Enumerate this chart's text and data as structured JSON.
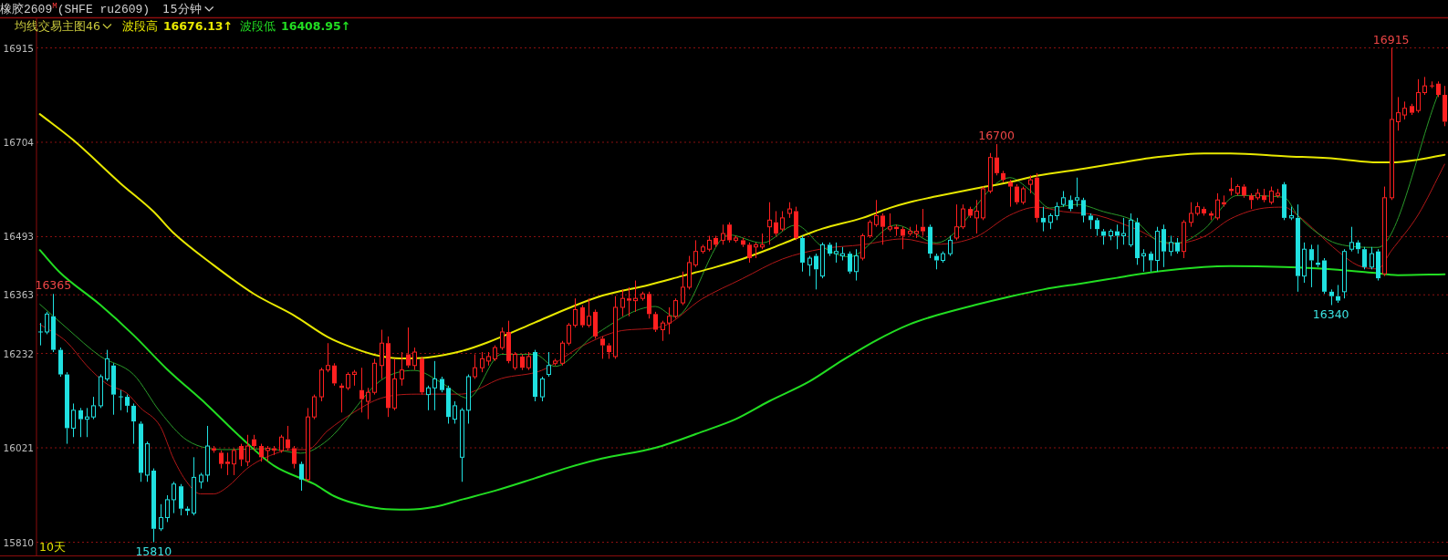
{
  "chart_data": {
    "type": "candlestick",
    "title": "橡胶2609$^{M}$(SHFE ru2609)",
    "subtitle": "15分钟",
    "legend_title": "均线交易主图46",
    "categories": [
      null,
      null,
      null,
      null,
      null,
      null,
      null,
      null,
      null,
      null,
      null,
      null,
      null,
      null,
      null,
      null,
      null,
      null,
      null,
      null,
      null,
      null,
      null,
      null,
      null,
      null,
      null,
      null,
      null,
      null,
      null,
      null,
      null,
      null,
      null,
      null,
      null,
      null,
      null,
      null,
      null,
      null,
      null,
      null,
      null,
      null,
      null,
      null,
      null,
      null,
      null,
      null,
      null,
      null,
      null,
      null,
      null,
      null,
      null,
      null,
      null,
      null,
      null,
      null,
      null,
      null,
      null,
      null,
      null,
      null,
      null,
      null,
      null,
      null,
      null,
      null,
      null,
      null,
      null,
      null,
      null,
      null,
      null,
      null,
      null,
      null,
      null,
      null,
      null,
      null,
      null,
      null,
      null,
      null,
      null,
      null,
      null,
      null,
      null,
      null,
      null,
      null,
      null,
      null,
      null,
      null,
      null,
      null,
      null,
      null,
      null,
      null,
      null,
      null,
      null,
      null,
      null,
      null,
      null,
      null,
      null,
      null,
      null,
      null,
      null,
      null,
      null,
      null,
      null,
      null,
      null,
      null,
      null,
      null,
      null,
      null,
      null,
      null,
      null,
      null,
      null,
      null,
      null,
      null,
      null,
      null,
      null,
      null,
      null,
      null,
      null,
      null,
      null,
      null,
      null,
      null,
      null,
      null,
      null,
      null,
      null,
      null,
      null,
      null,
      null,
      null,
      null,
      null,
      null,
      null,
      null,
      null,
      null,
      null,
      null,
      null,
      null,
      null,
      null,
      null,
      null,
      null,
      null,
      null,
      null,
      null,
      null,
      null,
      null,
      null,
      null,
      null,
      null,
      null,
      null,
      null,
      null,
      null,
      null,
      null,
      null,
      null,
      null,
      null,
      null,
      null,
      null,
      null,
      null,
      null,
      null
    ],
    "ohlc": [
      [
        16280,
        16300,
        16250,
        16280
      ],
      [
        16280,
        16325,
        16275,
        16320
      ],
      [
        16315,
        16365,
        16235,
        16240
      ],
      [
        16240,
        16245,
        16180,
        16185
      ],
      [
        16185,
        16190,
        16030,
        16065
      ],
      [
        16065,
        16120,
        16045,
        16105
      ],
      [
        16105,
        16110,
        16045,
        16085
      ],
      [
        16085,
        16110,
        16045,
        16090
      ],
      [
        16090,
        16135,
        16085,
        16115
      ],
      [
        16115,
        16185,
        16110,
        16180
      ],
      [
        16175,
        16240,
        16170,
        16220
      ],
      [
        16205,
        16210,
        16095,
        16140
      ],
      [
        16135,
        16150,
        16105,
        16135
      ],
      [
        16135,
        16140,
        16100,
        16115
      ],
      [
        16115,
        16120,
        16030,
        16080
      ],
      [
        16075,
        16080,
        15945,
        15965
      ],
      [
        15960,
        16035,
        15945,
        16030
      ],
      [
        15970,
        15975,
        15810,
        15840
      ],
      [
        15840,
        15895,
        15835,
        15865
      ],
      [
        15865,
        15915,
        15855,
        15905
      ],
      [
        15905,
        15945,
        15875,
        15940
      ],
      [
        15935,
        15940,
        15870,
        15885
      ],
      [
        15885,
        15890,
        15870,
        15880
      ],
      [
        15875,
        16000,
        15870,
        15955
      ],
      [
        15945,
        15965,
        15930,
        15960
      ],
      [
        15960,
        16070,
        15945,
        16025
      ],
      [
        16020,
        16025,
        16010,
        16015
      ],
      [
        16010,
        16015,
        15975,
        15985
      ],
      [
        15990,
        16010,
        15960,
        15985
      ],
      [
        15985,
        16020,
        15960,
        16015
      ],
      [
        16025,
        16030,
        15980,
        15995
      ],
      [
        15990,
        16050,
        15980,
        16025
      ],
      [
        16040,
        16050,
        16015,
        16025
      ],
      [
        16025,
        16030,
        15990,
        16000
      ],
      [
        16015,
        16025,
        15990,
        16020
      ],
      [
        16020,
        16025,
        16005,
        16015
      ],
      [
        16015,
        16050,
        16010,
        16045
      ],
      [
        16040,
        16070,
        16015,
        16020
      ],
      [
        16020,
        16025,
        15975,
        15985
      ],
      [
        15985,
        15990,
        15925,
        15950
      ],
      [
        15950,
        16110,
        15945,
        16090
      ],
      [
        16090,
        16140,
        16085,
        16135
      ],
      [
        16135,
        16200,
        16125,
        16195
      ],
      [
        16195,
        16255,
        16190,
        16205
      ],
      [
        16205,
        16210,
        16160,
        16165
      ],
      [
        16160,
        16165,
        16100,
        16155
      ],
      [
        16155,
        16190,
        16150,
        16185
      ],
      [
        16185,
        16195,
        16160,
        16190
      ],
      [
        16150,
        16200,
        16100,
        16130
      ],
      [
        16125,
        16155,
        16085,
        16145
      ],
      [
        16145,
        16220,
        16140,
        16210
      ],
      [
        16205,
        16285,
        16175,
        16255
      ],
      [
        16255,
        16270,
        16090,
        16110
      ],
      [
        16110,
        16220,
        16105,
        16175
      ],
      [
        16175,
        16235,
        16160,
        16195
      ],
      [
        16230,
        16290,
        16200,
        16205
      ],
      [
        16205,
        16245,
        16195,
        16235
      ],
      [
        16220,
        16225,
        16140,
        16145
      ],
      [
        16140,
        16160,
        16105,
        16155
      ],
      [
        16155,
        16215,
        16105,
        16175
      ],
      [
        16175,
        16180,
        16145,
        16150
      ],
      [
        16155,
        16160,
        16075,
        16090
      ],
      [
        16085,
        16125,
        16075,
        16115
      ],
      [
        16000,
        16110,
        15945,
        16105
      ],
      [
        16105,
        16185,
        16075,
        16180
      ],
      [
        16180,
        16230,
        16175,
        16200
      ],
      [
        16200,
        16235,
        16190,
        16220
      ],
      [
        16215,
        16235,
        16205,
        16225
      ],
      [
        16220,
        16250,
        16215,
        16245
      ],
      [
        16245,
        16290,
        16240,
        16280
      ],
      [
        16280,
        16305,
        16210,
        16215
      ],
      [
        16200,
        16235,
        16195,
        16230
      ],
      [
        16225,
        16230,
        16195,
        16200
      ],
      [
        16200,
        16235,
        16195,
        16225
      ],
      [
        16235,
        16240,
        16125,
        16135
      ],
      [
        16135,
        16180,
        16125,
        16175
      ],
      [
        16185,
        16235,
        16180,
        16205
      ],
      [
        16210,
        16220,
        16205,
        16215
      ],
      [
        16210,
        16260,
        16205,
        16255
      ],
      [
        16255,
        16300,
        16250,
        16295
      ],
      [
        16295,
        16355,
        16290,
        16330
      ],
      [
        16335,
        16340,
        16290,
        16295
      ],
      [
        16295,
        16355,
        16290,
        16315
      ],
      [
        16325,
        16330,
        16265,
        16270
      ],
      [
        16265,
        16270,
        16220,
        16250
      ],
      [
        16250,
        16255,
        16220,
        16235
      ],
      [
        16225,
        16360,
        16220,
        16335
      ],
      [
        16335,
        16375,
        16315,
        16355
      ],
      [
        16355,
        16380,
        16315,
        16350
      ],
      [
        16350,
        16395,
        16325,
        16355
      ],
      [
        16355,
        16370,
        16350,
        16365
      ],
      [
        16365,
        16370,
        16310,
        16320
      ],
      [
        16320,
        16325,
        16280,
        16285
      ],
      [
        16285,
        16305,
        16260,
        16300
      ],
      [
        16300,
        16335,
        16275,
        16315
      ],
      [
        16315,
        16355,
        16310,
        16350
      ],
      [
        16345,
        16415,
        16340,
        16380
      ],
      [
        16380,
        16450,
        16375,
        16435
      ],
      [
        16430,
        16485,
        16425,
        16460
      ],
      [
        16460,
        16475,
        16455,
        16470
      ],
      [
        16465,
        16495,
        16460,
        16485
      ],
      [
        16490,
        16495,
        16470,
        16475
      ],
      [
        16485,
        16520,
        16475,
        16500
      ],
      [
        16520,
        16525,
        16480,
        16485
      ],
      [
        16485,
        16495,
        16480,
        16490
      ],
      [
        16485,
        16490,
        16470,
        16475
      ],
      [
        16475,
        16480,
        16435,
        16445
      ],
      [
        16470,
        16480,
        16445,
        16475
      ],
      [
        16470,
        16500,
        16465,
        16475
      ],
      [
        16515,
        16570,
        16475,
        16530
      ],
      [
        16525,
        16550,
        16495,
        16500
      ],
      [
        16510,
        16550,
        16505,
        16535
      ],
      [
        16545,
        16570,
        16535,
        16555
      ],
      [
        16550,
        16560,
        16485,
        16490
      ],
      [
        16490,
        16495,
        16415,
        16435
      ],
      [
        16430,
        16450,
        16405,
        16445
      ],
      [
        16450,
        16455,
        16375,
        16420
      ],
      [
        16405,
        16480,
        16400,
        16475
      ],
      [
        16475,
        16480,
        16450,
        16455
      ],
      [
        16455,
        16480,
        16435,
        16460
      ],
      [
        16450,
        16470,
        16440,
        16455
      ],
      [
        16455,
        16460,
        16410,
        16415
      ],
      [
        16415,
        16465,
        16395,
        16450
      ],
      [
        16445,
        16500,
        16440,
        16495
      ],
      [
        16495,
        16530,
        16490,
        16525
      ],
      [
        16520,
        16575,
        16515,
        16540
      ],
      [
        16540,
        16545,
        16475,
        16515
      ],
      [
        16510,
        16545,
        16505,
        16515
      ],
      [
        16515,
        16520,
        16495,
        16510
      ],
      [
        16510,
        16515,
        16465,
        16495
      ],
      [
        16500,
        16515,
        16495,
        16505
      ],
      [
        16500,
        16520,
        16490,
        16505
      ],
      [
        16515,
        16555,
        16495,
        16505
      ],
      [
        16515,
        16520,
        16445,
        16455
      ],
      [
        16450,
        16455,
        16420,
        16440
      ],
      [
        16440,
        16460,
        16435,
        16455
      ],
      [
        16455,
        16495,
        16450,
        16485
      ],
      [
        16490,
        16565,
        16485,
        16515
      ],
      [
        16515,
        16565,
        16510,
        16555
      ],
      [
        16555,
        16560,
        16535,
        16540
      ],
      [
        16535,
        16575,
        16500,
        16550
      ],
      [
        16535,
        16605,
        16530,
        16600
      ],
      [
        16595,
        16680,
        16590,
        16670
      ],
      [
        16670,
        16700,
        16630,
        16635
      ],
      [
        16635,
        16640,
        16615,
        16620
      ],
      [
        16615,
        16620,
        16560,
        16605
      ],
      [
        16605,
        16610,
        16565,
        16570
      ],
      [
        16570,
        16605,
        16565,
        16600
      ],
      [
        16610,
        16630,
        16590,
        16620
      ],
      [
        16625,
        16635,
        16525,
        16535
      ],
      [
        16535,
        16560,
        16505,
        16525
      ],
      [
        16525,
        16545,
        16510,
        16540
      ],
      [
        16540,
        16570,
        16530,
        16560
      ],
      [
        16565,
        16595,
        16560,
        16580
      ],
      [
        16575,
        16585,
        16550,
        16555
      ],
      [
        16575,
        16625,
        16560,
        16580
      ],
      [
        16575,
        16580,
        16525,
        16540
      ],
      [
        16540,
        16545,
        16510,
        16530
      ],
      [
        16530,
        16535,
        16495,
        16510
      ],
      [
        16505,
        16510,
        16475,
        16495
      ],
      [
        16495,
        16510,
        16485,
        16505
      ],
      [
        16505,
        16520,
        16465,
        16495
      ],
      [
        16495,
        16535,
        16475,
        16500
      ],
      [
        16475,
        16545,
        16470,
        16530
      ],
      [
        16525,
        16535,
        16430,
        16445
      ],
      [
        16450,
        16465,
        16415,
        16455
      ],
      [
        16455,
        16460,
        16415,
        16440
      ],
      [
        16440,
        16515,
        16415,
        16505
      ],
      [
        16510,
        16520,
        16425,
        16460
      ],
      [
        16460,
        16495,
        16450,
        16480
      ],
      [
        16480,
        16490,
        16455,
        16460
      ],
      [
        16460,
        16530,
        16445,
        16525
      ],
      [
        16525,
        16570,
        16515,
        16545
      ],
      [
        16545,
        16570,
        16540,
        16560
      ],
      [
        16555,
        16560,
        16540,
        16545
      ],
      [
        16545,
        16550,
        16530,
        16540
      ],
      [
        16535,
        16590,
        16530,
        16575
      ],
      [
        16570,
        16585,
        16560,
        16565
      ],
      [
        16600,
        16625,
        16585,
        16595
      ],
      [
        16590,
        16610,
        16585,
        16605
      ],
      [
        16605,
        16610,
        16580,
        16585
      ],
      [
        16585,
        16590,
        16555,
        16575
      ],
      [
        16580,
        16600,
        16575,
        16590
      ],
      [
        16585,
        16600,
        16570,
        16575
      ],
      [
        16570,
        16605,
        16565,
        16595
      ],
      [
        16585,
        16600,
        16580,
        16590
      ],
      [
        16610,
        16615,
        16530,
        16535
      ],
      [
        16535,
        16560,
        16530,
        16540
      ],
      [
        16535,
        16565,
        16370,
        16405
      ],
      [
        16405,
        16480,
        16390,
        16465
      ],
      [
        16465,
        16475,
        16380,
        16440
      ],
      [
        16435,
        16475,
        16425,
        16430
      ],
      [
        16440,
        16445,
        16365,
        16370
      ],
      [
        16370,
        16375,
        16340,
        16360
      ],
      [
        16360,
        16385,
        16345,
        16350
      ],
      [
        16370,
        16465,
        16355,
        16460
      ],
      [
        16465,
        16515,
        16460,
        16480
      ],
      [
        16480,
        16485,
        16455,
        16465
      ],
      [
        16465,
        16470,
        16420,
        16425
      ],
      [
        16425,
        16470,
        16420,
        16455
      ],
      [
        16460,
        16465,
        16395,
        16400
      ],
      [
        16410,
        16605,
        16405,
        16580
      ],
      [
        16580,
        16915,
        16575,
        16755
      ],
      [
        16750,
        16805,
        16730,
        16770
      ],
      [
        16765,
        16795,
        16755,
        16780
      ],
      [
        16785,
        16790,
        16765,
        16770
      ],
      [
        16775,
        16845,
        16770,
        16815
      ],
      [
        16815,
        16850,
        16810,
        16830
      ],
      [
        16830,
        16840,
        16825,
        16830
      ],
      [
        16835,
        16840,
        16805,
        16810
      ],
      [
        16810,
        16830,
        16740,
        16750
      ]
    ],
    "colors": [
      "#20e0e0",
      "#20e0e0",
      "#20e0e0",
      "#20e0e0",
      "#20e0e0",
      "#20e0e0",
      "#20e0e0",
      "#20e0e0",
      "#20e0e0",
      "#20e0e0",
      "#20e0e0",
      "#20e0e0",
      "#20e0e0",
      "#20e0e0",
      "#20e0e0",
      "#20e0e0",
      "#20e0e0",
      "#20e0e0",
      "#20e0e0",
      "#20e0e0",
      "#20e0e0",
      "#20e0e0",
      "#20e0e0",
      "#20e0e0",
      "#20e0e0",
      "#20e0e0",
      "#ff2020",
      "#ff2020",
      "#ff2020",
      "#ff2020",
      "#ff2020",
      "#ff2020",
      "#ff2020",
      "#ff2020",
      "#ff2020",
      "#ff2020",
      "#ff2020",
      "#ff2020",
      "#ff2020",
      "#20e0e0",
      "#ff2020",
      "#ff2020",
      "#ff2020",
      "#ff2020",
      "#ff2020",
      "#ff2020",
      "#ff2020",
      "#ff2020",
      "#ff2020",
      "#ff2020",
      "#ff2020",
      "#ff2020",
      "#ff2020",
      "#ff2020",
      "#ff2020",
      "#ff2020",
      "#ff2020",
      "#ff2020",
      "#20e0e0",
      "#20e0e0",
      "#20e0e0",
      "#20e0e0",
      "#20e0e0",
      "#20e0e0",
      "#20e0e0",
      "#ff2020",
      "#ff2020",
      "#ff2020",
      "#ff2020",
      "#ff2020",
      "#ff2020",
      "#ff2020",
      "#ff2020",
      "#ff2020",
      "#20e0e0",
      "#20e0e0",
      "#20e0e0",
      "#ff2020",
      "#ff2020",
      "#ff2020",
      "#ff2020",
      "#ff2020",
      "#ff2020",
      "#ff2020",
      "#ff2020",
      "#ff2020",
      "#ff2020",
      "#ff2020",
      "#ff2020",
      "#ff2020",
      "#ff2020",
      "#ff2020",
      "#ff2020",
      "#ff2020",
      "#ff2020",
      "#ff2020",
      "#ff2020",
      "#ff2020",
      "#ff2020",
      "#ff2020",
      "#ff2020",
      "#ff2020",
      "#ff2020",
      "#ff2020",
      "#ff2020",
      "#ff2020",
      "#ff2020",
      "#ff2020",
      "#ff2020",
      "#ff2020",
      "#ff2020",
      "#ff2020",
      "#ff2020",
      "#ff2020",
      "#20e0e0",
      "#20e0e0",
      "#20e0e0",
      "#20e0e0",
      "#20e0e0",
      "#20e0e0",
      "#20e0e0",
      "#20e0e0",
      "#20e0e0",
      "#ff2020",
      "#ff2020",
      "#ff2020",
      "#ff2020",
      "#ff2020",
      "#ff2020",
      "#ff2020",
      "#ff2020",
      "#ff2020",
      "#ff2020",
      "#20e0e0",
      "#20e0e0",
      "#20e0e0",
      "#20e0e0",
      "#ff2020",
      "#ff2020",
      "#ff2020",
      "#ff2020",
      "#ff2020",
      "#ff2020",
      "#ff2020",
      "#ff2020",
      "#ff2020",
      "#ff2020",
      "#ff2020",
      "#ff2020",
      "#ff2020",
      "#20e0e0",
      "#20e0e0",
      "#20e0e0",
      "#20e0e0",
      "#20e0e0",
      "#20e0e0",
      "#20e0e0",
      "#20e0e0",
      "#20e0e0",
      "#20e0e0",
      "#20e0e0",
      "#20e0e0",
      "#20e0e0",
      "#20e0e0",
      "#20e0e0",
      "#20e0e0",
      "#20e0e0",
      "#20e0e0",
      "#20e0e0",
      "#20e0e0",
      "#20e0e0",
      "#ff2020",
      "#ff2020",
      "#ff2020",
      "#ff2020",
      "#ff2020",
      "#ff2020",
      "#ff2020",
      "#ff2020",
      "#ff2020",
      "#ff2020",
      "#ff2020",
      "#ff2020",
      "#ff2020",
      "#ff2020",
      "#ff2020",
      "#20e0e0",
      "#20e0e0",
      "#20e0e0",
      "#20e0e0",
      "#20e0e0",
      "#20e0e0",
      "#20e0e0",
      "#20e0e0",
      "#20e0e0",
      "#20e0e0",
      "#20e0e0",
      "#20e0e0",
      "#20e0e0",
      "#20e0e0",
      "#20e0e0",
      "#ff2020",
      "#ff2020",
      "#ff2020",
      "#ff2020",
      "#ff2020",
      "#ff2020",
      "#ff2020",
      "#ff2020",
      "#ff2020",
      "#ff2020"
    ],
    "series": [
      {
        "type": "line",
        "color": "#b01818",
        "values": [
          16297,
          null,
          null,
          null,
          16258,
          null,
          null,
          16205,
          null,
          null,
          16164,
          null,
          null,
          16143,
          null,
          16111,
          null,
          null,
          16069,
          null,
          15996,
          null,
          15944,
          null,
          15918,
          null,
          15918,
          null,
          15933,
          null,
          null,
          15975,
          null,
          null,
          16001,
          null,
          null,
          null,
          16017,
          null,
          16017,
          null,
          null,
          16059,
          null,
          null,
          null,
          16101,
          null,
          null,
          null,
          16132,
          null,
          null,
          null,
          null,
          null,
          16141,
          null,
          null,
          null,
          null,
          null,
          16141,
          null,
          null,
          null,
          null,
          null,
          16176,
          null,
          null,
          null,
          null,
          null,
          16194,
          null,
          null,
          null,
          null,
          null,
          16248,
          null,
          null,
          null,
          null,
          null,
          16283,
          null,
          null,
          null,
          null,
          null,
          16292,
          null,
          null,
          null,
          null,
          null,
          16354,
          null,
          null,
          null,
          null,
          null,
          16399,
          null,
          null,
          null,
          null,
          null,
          16443,
          null,
          null,
          null,
          null,
          null,
          16466,
          null,
          null,
          null,
          null,
          null,
          16475,
          null,
          null,
          null,
          null,
          null,
          16488,
          null,
          null,
          null,
          null,
          16476,
          null,
          null,
          null,
          null,
          null,
          16493,
          null,
          null,
          null,
          null,
          16541,
          null,
          null,
          null,
          16559,
          null,
          null,
          null,
          16549,
          null,
          null,
          null,
          null,
          16541,
          null,
          null,
          null,
          null,
          null,
          16509,
          null,
          null,
          null,
          null,
          16477,
          null,
          null,
          null,
          null,
          16493,
          null,
          null,
          null,
          16533,
          null,
          null,
          null,
          null,
          16557,
          null,
          null,
          16559,
          null,
          16541,
          null,
          null,
          null,
          null,
          null,
          16461,
          null,
          null,
          16429,
          null,
          null,
          16421,
          null,
          16461,
          null,
          null,
          null,
          16541,
          null,
          null,
          null,
          16655
        ]
      },
      {
        "type": "line",
        "color": "#2a9a2a",
        "values": [
          16342,
          null,
          null,
          null,
          16289,
          null,
          null,
          null,
          null,
          16226,
          null,
          null,
          null,
          null,
          16185,
          null,
          null,
          null,
          16101,
          null,
          null,
          null,
          16038,
          null,
          null,
          null,
          null,
          null,
          16017,
          null,
          null,
          null,
          null,
          null,
          16019,
          null,
          null,
          null,
          null,
          16009,
          null,
          null,
          null,
          16038,
          null,
          null,
          null,
          null,
          null,
          null,
          null,
          16172,
          null,
          null,
          null,
          null,
          16194,
          null,
          null,
          null,
          16167,
          null,
          null,
          null,
          16132,
          null,
          null,
          null,
          null,
          16230,
          null,
          null,
          null,
          null,
          16230,
          null,
          null,
          16203,
          null,
          null,
          null,
          null,
          null,
          16274,
          null,
          null,
          null,
          null,
          null,
          null,
          null,
          null,
          16337,
          null,
          null,
          16314,
          null,
          null,
          null,
          null,
          null,
          null,
          null,
          16497,
          null,
          null,
          null,
          null,
          16479,
          null,
          null,
          null,
          null,
          16519,
          null,
          null,
          null,
          16470,
          null,
          null,
          null,
          16448,
          null,
          null,
          null,
          null,
          null,
          null,
          16519,
          null,
          null,
          null,
          null,
          null,
          16479,
          null,
          null,
          null,
          null,
          null,
          null,
          null,
          null,
          null,
          null,
          16625,
          null,
          null,
          16597,
          null,
          null,
          16557,
          null,
          null,
          null,
          16565,
          null,
          null,
          null,
          16549,
          null,
          null,
          null,
          null,
          16525,
          null,
          null,
          16485,
          null,
          null,
          16479,
          null,
          null,
          null,
          16509,
          null,
          null,
          null,
          null,
          16585,
          null,
          null,
          null,
          null,
          null,
          null,
          16581,
          null,
          16541,
          null,
          null,
          16501,
          null,
          null,
          16477,
          null,
          null,
          null,
          null,
          null,
          16469,
          null,
          null,
          null,
          null,
          null,
          null,
          null,
          null,
          16811,
          null
        ]
      },
      {
        "type": "line",
        "name": "波段高",
        "color": "#e8e800",
        "values": [
          16767,
          null,
          null,
          null,
          null,
          16709,
          null,
          null,
          null,
          null,
          null,
          null,
          16613,
          null,
          null,
          null,
          null,
          16549,
          null,
          null,
          16501,
          null,
          null,
          null,
          null,
          null,
          16429,
          null,
          null,
          null,
          null,
          null,
          16365,
          null,
          null,
          null,
          null,
          null,
          16317,
          null,
          null,
          null,
          null,
          16269,
          null,
          null,
          16249,
          null,
          null,
          null,
          16229,
          null,
          null,
          null,
          16221,
          null,
          null,
          null,
          16223,
          null,
          null,
          null,
          null,
          16237,
          null,
          null,
          null,
          16257,
          null,
          null,
          null,
          null,
          null,
          null,
          16301,
          null,
          null,
          null,
          null,
          16333,
          null,
          null,
          null,
          null,
          16361,
          null,
          null,
          null,
          null,
          null,
          null,
          16385,
          null,
          null,
          null,
          null,
          16405,
          null,
          null,
          null,
          null,
          16425,
          null,
          null,
          null,
          16443,
          null,
          null,
          null,
          16465,
          null,
          null,
          null,
          16489,
          null,
          null,
          null,
          16511,
          null,
          null,
          null,
          null,
          null,
          16535,
          null,
          null,
          null,
          16557,
          null,
          null,
          16570,
          null,
          null,
          null,
          16583,
          null,
          null,
          null,
          null,
          null,
          16601,
          null,
          null,
          null,
          null,
          16615,
          null,
          null,
          null,
          16629,
          null,
          null,
          null,
          null,
          null,
          null,
          16645,
          null,
          null,
          null,
          null,
          16657,
          null,
          null,
          null,
          null,
          16669,
          null,
          null,
          null,
          null,
          null,
          null,
          null,
          16679,
          null,
          null,
          null,
          16679,
          null,
          null,
          null,
          null,
          null,
          null,
          null,
          16673,
          null,
          null,
          null,
          null,
          null,
          null,
          null,
          16667,
          null,
          null,
          null,
          null,
          null,
          16659,
          null,
          16659,
          null,
          null,
          null,
          16665,
          null,
          null,
          null,
          16676.13
        ]
      },
      {
        "type": "line",
        "name": "波段低",
        "color": "#22dd22",
        "values": [
          16463,
          null,
          null,
          16413,
          null,
          null,
          null,
          null,
          null,
          16341,
          null,
          null,
          null,
          null,
          16273,
          null,
          null,
          null,
          null,
          16197,
          null,
          null,
          null,
          null,
          null,
          16117,
          null,
          null,
          null,
          null,
          16045,
          null,
          null,
          null,
          null,
          15981,
          null,
          null,
          null,
          null,
          null,
          15940,
          null,
          null,
          15913,
          null,
          null,
          15897,
          null,
          null,
          null,
          15885,
          null,
          null,
          null,
          15883,
          null,
          null,
          null,
          15889,
          null,
          null,
          null,
          15905,
          null,
          null,
          null,
          null,
          15925,
          null,
          null,
          null,
          null,
          null,
          15953,
          null,
          null,
          null,
          null,
          15977,
          null,
          null,
          null,
          null,
          15997,
          null,
          null,
          null,
          null,
          null,
          null,
          null,
          16021,
          null,
          null,
          null,
          null,
          null,
          null,
          16057,
          null,
          null,
          null,
          null,
          16085,
          null,
          null,
          null,
          null,
          16125,
          null,
          null,
          null,
          null,
          null,
          16169,
          null,
          null,
          null,
          null,
          16217,
          null,
          null,
          null,
          null,
          16261,
          null,
          null,
          null,
          null,
          16297,
          null,
          null,
          null,
          16317,
          null,
          null,
          null,
          null,
          null,
          16341,
          null,
          null,
          null,
          null,
          16359,
          null,
          null,
          null,
          null,
          16375,
          null,
          null,
          null,
          null,
          null,
          16389,
          null,
          null,
          null,
          null,
          16401,
          null,
          null,
          null,
          null,
          16413,
          null,
          null,
          null,
          null,
          null,
          null,
          null,
          16425,
          null,
          null,
          null,
          16427,
          null,
          null,
          null,
          null,
          null,
          null,
          null,
          16425,
          null,
          null,
          null,
          null,
          null,
          null,
          null,
          16419,
          null,
          null,
          null,
          null,
          null,
          16411,
          null,
          null,
          16407,
          null,
          null,
          null,
          null,
          null,
          null,
          16408.95
        ]
      }
    ],
    "ylim": [
      15810,
      16915
    ],
    "yticks": [
      16915,
      16704,
      16493,
      16363,
      16232,
      16021,
      15810
    ],
    "tick_labels": "y",
    "grid": "y",
    "legend": "top left",
    "annotations": [
      "16676.13↑",
      "16408.95↑",
      "10天",
      {
        "text": "16365",
        "y": 16365
      },
      {
        "text": "15810",
        "y": 15810
      },
      {
        "text": "16700",
        "y": 16700
      },
      {
        "text": "16340",
        "y": 16340
      },
      {
        "text": "16915",
        "y": 16915
      }
    ]
  }
}
